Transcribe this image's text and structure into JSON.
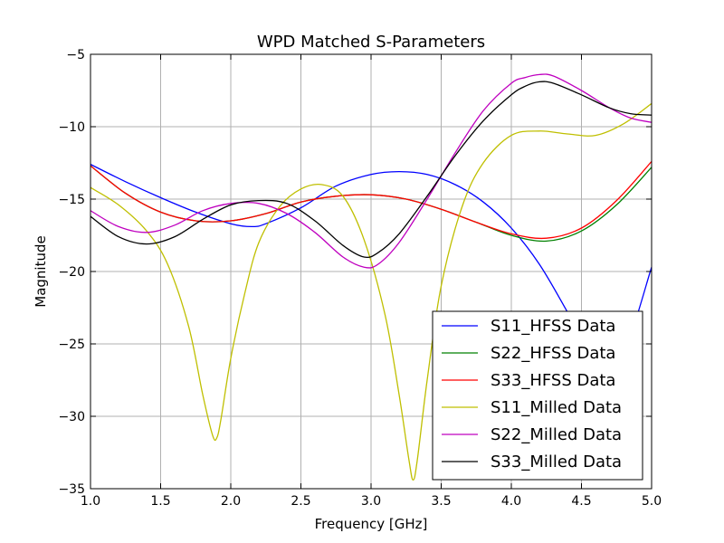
{
  "chart_data": {
    "type": "line",
    "title": "WPD Matched S-Parameters",
    "xlabel": "Frequency [GHz]",
    "ylabel": "Magnitude",
    "xlim": [
      1.0,
      5.0
    ],
    "ylim": [
      -35,
      -5
    ],
    "xticks": [
      "1.0",
      "1.5",
      "2.0",
      "2.5",
      "3.0",
      "3.5",
      "4.0",
      "4.5",
      "5.0"
    ],
    "yticks": [
      "−5",
      "−10",
      "−15",
      "−20",
      "−25",
      "−30",
      "−35"
    ],
    "grid": true,
    "legend_position": "lower-right",
    "series": [
      {
        "name": "S11_HFSS Data",
        "color": "#0000ff",
        "x": [
          1.0,
          1.25,
          1.5,
          1.75,
          2.0,
          2.15,
          2.25,
          2.5,
          2.75,
          3.0,
          3.2,
          3.4,
          3.6,
          3.8,
          4.0,
          4.2,
          4.4,
          4.6,
          4.8,
          5.0
        ],
        "y": [
          -12.6,
          -13.8,
          -14.9,
          -15.9,
          -16.7,
          -16.9,
          -16.7,
          -15.6,
          -14.1,
          -13.3,
          -13.1,
          -13.3,
          -14.0,
          -15.2,
          -17.0,
          -19.5,
          -22.8,
          -26.3,
          -25.5,
          -19.7
        ]
      },
      {
        "name": "S22_HFSS Data",
        "color": "#008000",
        "x": [
          1.0,
          1.25,
          1.5,
          1.75,
          2.0,
          2.25,
          2.5,
          2.75,
          3.0,
          3.25,
          3.5,
          3.75,
          4.0,
          4.25,
          4.5,
          4.75,
          5.0
        ],
        "y": [
          -12.7,
          -14.6,
          -15.9,
          -16.5,
          -16.5,
          -16.0,
          -15.2,
          -14.8,
          -14.7,
          -15.0,
          -15.7,
          -16.6,
          -17.5,
          -17.9,
          -17.2,
          -15.4,
          -12.8
        ]
      },
      {
        "name": "S33_HFSS Data",
        "color": "#ff0000",
        "x": [
          1.0,
          1.25,
          1.5,
          1.75,
          2.0,
          2.25,
          2.5,
          2.75,
          3.0,
          3.25,
          3.5,
          3.75,
          4.0,
          4.25,
          4.5,
          4.75,
          5.0
        ],
        "y": [
          -12.7,
          -14.6,
          -15.9,
          -16.5,
          -16.5,
          -16.0,
          -15.2,
          -14.8,
          -14.7,
          -15.0,
          -15.7,
          -16.6,
          -17.4,
          -17.7,
          -17.0,
          -15.1,
          -12.4
        ]
      },
      {
        "name": "S11_Milled Data",
        "color": "#bfbf00",
        "x": [
          1.0,
          1.2,
          1.4,
          1.55,
          1.7,
          1.8,
          1.87,
          1.9,
          1.93,
          2.0,
          2.1,
          2.2,
          2.35,
          2.5,
          2.65,
          2.8,
          2.95,
          3.1,
          3.2,
          3.27,
          3.3,
          3.33,
          3.4,
          3.5,
          3.65,
          3.8,
          4.0,
          4.2,
          4.4,
          4.6,
          4.8,
          5.0
        ],
        "y": [
          -14.2,
          -15.4,
          -17.2,
          -19.5,
          -23.8,
          -28.5,
          -31.3,
          -31.5,
          -30.2,
          -26.0,
          -21.5,
          -18.0,
          -15.5,
          -14.3,
          -14.0,
          -14.8,
          -17.8,
          -23.0,
          -28.5,
          -33.0,
          -34.4,
          -33.0,
          -27.5,
          -21.0,
          -15.5,
          -12.5,
          -10.6,
          -10.3,
          -10.5,
          -10.6,
          -9.8,
          -8.4
        ]
      },
      {
        "name": "S22_Milled Data",
        "color": "#bf00bf",
        "x": [
          1.0,
          1.2,
          1.4,
          1.6,
          1.8,
          2.0,
          2.2,
          2.4,
          2.6,
          2.8,
          2.95,
          3.05,
          3.2,
          3.4,
          3.6,
          3.8,
          4.0,
          4.1,
          4.2,
          4.3,
          4.5,
          4.7,
          4.85,
          5.0
        ],
        "y": [
          -15.8,
          -16.9,
          -17.3,
          -16.8,
          -15.8,
          -15.3,
          -15.3,
          -16.0,
          -17.3,
          -19.0,
          -19.7,
          -19.5,
          -18.0,
          -15.0,
          -11.8,
          -8.9,
          -7.0,
          -6.6,
          -6.4,
          -6.5,
          -7.5,
          -8.7,
          -9.4,
          -9.7
        ]
      },
      {
        "name": "S33_Milled Data",
        "color": "#000000",
        "x": [
          1.0,
          1.2,
          1.4,
          1.6,
          1.8,
          2.0,
          2.2,
          2.4,
          2.6,
          2.8,
          2.95,
          3.05,
          3.2,
          3.4,
          3.6,
          3.8,
          4.0,
          4.1,
          4.2,
          4.3,
          4.5,
          4.7,
          4.85,
          5.0
        ],
        "y": [
          -16.2,
          -17.6,
          -18.1,
          -17.6,
          -16.4,
          -15.4,
          -15.1,
          -15.3,
          -16.5,
          -18.2,
          -19.0,
          -18.7,
          -17.4,
          -14.8,
          -12.0,
          -9.6,
          -7.8,
          -7.2,
          -6.9,
          -7.0,
          -7.8,
          -8.7,
          -9.1,
          -9.2
        ]
      }
    ]
  }
}
